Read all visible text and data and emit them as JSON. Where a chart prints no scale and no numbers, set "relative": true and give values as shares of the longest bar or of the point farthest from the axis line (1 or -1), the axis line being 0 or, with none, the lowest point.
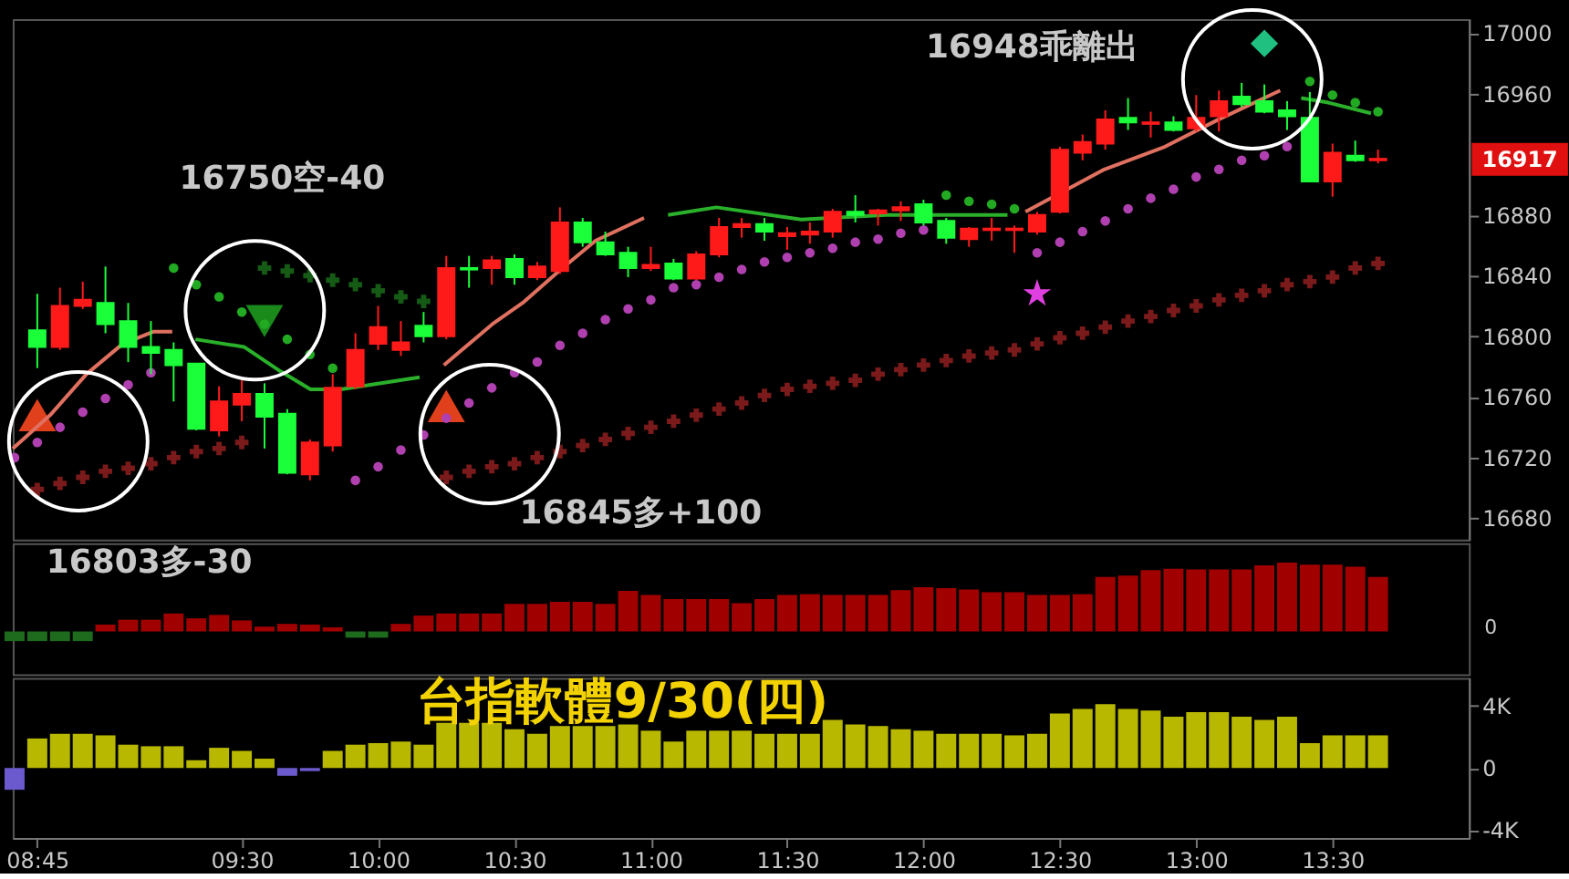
{
  "chart_data": [
    {
      "type": "candlestick",
      "x": [
        8.75,
        8.8333,
        8.9167,
        9,
        9.0833,
        9.1667,
        9.25,
        9.3333,
        9.4167,
        9.5,
        9.5833,
        9.6667,
        9.75,
        9.8333,
        9.9167,
        10,
        10.0833,
        10.1667,
        10.25,
        10.3333,
        10.4167,
        10.5,
        10.5833,
        10.6667,
        10.75,
        10.8333,
        10.9167,
        11,
        11.0833,
        11.1667,
        11.25,
        11.3333,
        11.4167,
        11.5,
        11.5833,
        11.6667,
        11.75,
        11.8333,
        11.9167,
        12,
        12.0833,
        12.1667,
        12.25,
        12.3333,
        12.4167,
        12.5,
        12.5833,
        12.6667,
        12.75,
        12.8333,
        12.9167,
        13,
        13.0833,
        13.1667,
        13.25,
        13.3333,
        13.4167,
        13.5,
        13.5833,
        13.6667
      ],
      "ohlc": [
        [
          16804,
          16828,
          16779,
          16793
        ],
        [
          16793,
          16832,
          16791,
          16820
        ],
        [
          16820,
          16836,
          16818,
          16824
        ],
        [
          16822,
          16846,
          16802,
          16808
        ],
        [
          16810,
          16822,
          16783,
          16793
        ],
        [
          16793,
          16810,
          16775,
          16789
        ],
        [
          16791,
          16796,
          16757,
          16781
        ],
        [
          16782,
          16782,
          16738,
          16739
        ],
        [
          16738,
          16767,
          16734,
          16757
        ],
        [
          16755,
          16771,
          16744,
          16762
        ],
        [
          16762,
          16769,
          16726,
          16747
        ],
        [
          16749,
          16752,
          16709,
          16710
        ],
        [
          16709,
          16732,
          16705,
          16730
        ],
        [
          16728,
          16775,
          16724,
          16766
        ],
        [
          16767,
          16802,
          16765,
          16791
        ],
        [
          16795,
          16820,
          16791,
          16806
        ],
        [
          16791,
          16810,
          16787,
          16796
        ],
        [
          16807,
          16816,
          16796,
          16800
        ],
        [
          16800,
          16853,
          16798,
          16845
        ],
        [
          16845,
          16853,
          16832,
          16844
        ],
        [
          16845,
          16853,
          16834,
          16850
        ],
        [
          16851,
          16854,
          16834,
          16839
        ],
        [
          16839,
          16849,
          16837,
          16846
        ],
        [
          16843,
          16885,
          16841,
          16875
        ],
        [
          16875,
          16878,
          16859,
          16862
        ],
        [
          16862,
          16869,
          16853,
          16854
        ],
        [
          16855,
          16859,
          16839,
          16845
        ],
        [
          16845,
          16859,
          16843,
          16847
        ],
        [
          16848,
          16851,
          16837,
          16838
        ],
        [
          16838,
          16856,
          16837,
          16854
        ],
        [
          16854,
          16878,
          16852,
          16872
        ],
        [
          16872,
          16878,
          16865,
          16874
        ],
        [
          16874,
          16878,
          16863,
          16869
        ],
        [
          16866,
          16872,
          16857,
          16868
        ],
        [
          16867,
          16875,
          16861,
          16869
        ],
        [
          16869,
          16884,
          16865,
          16882
        ],
        [
          16882,
          16893,
          16875,
          16880
        ],
        [
          16881,
          16884,
          16873,
          16883
        ],
        [
          16883,
          16889,
          16876,
          16885
        ],
        [
          16887,
          16890,
          16873,
          16875
        ],
        [
          16876,
          16878,
          16861,
          16865
        ],
        [
          16864,
          16872,
          16859,
          16871
        ],
        [
          16870,
          16878,
          16863,
          16871
        ],
        [
          16870,
          16873,
          16855,
          16871
        ],
        [
          16869,
          16882,
          16867,
          16880
        ],
        [
          16882,
          16925,
          16881,
          16923
        ],
        [
          16921,
          16933,
          16916,
          16928
        ],
        [
          16927,
          16949,
          16923,
          16943
        ],
        [
          16944,
          16957,
          16936,
          16941
        ],
        [
          16940,
          16948,
          16931,
          16941
        ],
        [
          16941,
          16945,
          16935,
          16936
        ],
        [
          16937,
          16959,
          16935,
          16944
        ],
        [
          16945,
          16962,
          16935,
          16955
        ],
        [
          16958,
          16967,
          16951,
          16953
        ],
        [
          16955,
          16966,
          16947,
          16948
        ],
        [
          16949,
          16955,
          16936,
          16945
        ],
        [
          16944,
          16961,
          16902,
          16902
        ],
        [
          16902,
          16927,
          16892,
          16921
        ],
        [
          16919,
          16929,
          16915,
          16916
        ],
        [
          16916,
          16923,
          16914,
          16917
        ]
      ],
      "colors": [
        "#1aff3a",
        "#ff1a1a",
        "#ff1a1a",
        "#1aff3a",
        "#1aff3a",
        "#1aff3a",
        "#1aff3a",
        "#1aff3a",
        "#ff1a1a",
        "#ff1a1a",
        "#1aff3a",
        "#1aff3a",
        "#ff1a1a",
        "#ff1a1a",
        "#ff1a1a",
        "#ff1a1a",
        "#ff1a1a",
        "#1aff3a",
        "#ff1a1a",
        "#1aff3a",
        "#ff1a1a",
        "#1aff3a",
        "#ff1a1a",
        "#ff1a1a",
        "#1aff3a",
        "#1aff3a",
        "#1aff3a",
        "#ff1a1a",
        "#1aff3a",
        "#ff1a1a",
        "#ff1a1a",
        "#ff1a1a",
        "#1aff3a",
        "#ff1a1a",
        "#ff1a1a",
        "#ff1a1a",
        "#1aff3a",
        "#ff1a1a",
        "#ff1a1a",
        "#1aff3a",
        "#1aff3a",
        "#ff1a1a",
        "#ff1a1a",
        "#ff1a1a",
        "#ff1a1a",
        "#ff1a1a",
        "#ff1a1a",
        "#ff1a1a",
        "#1aff3a",
        "#ff1a1a",
        "#1aff3a",
        "#ff1a1a",
        "#ff1a1a",
        "#1aff3a",
        "#1aff3a",
        "#1aff3a",
        "#1aff3a",
        "#ff1a1a",
        "#1aff3a",
        "#ff1a1a"
      ],
      "series": [
        {
          "type": "scatter",
          "marker": "triangle",
          "color": "#e0401c",
          "x": [
            8.75,
            10.25
          ],
          "values": [
            16748,
            16754
          ]
        },
        {
          "type": "scatter",
          "marker": "triangle-down",
          "color": "#1a8a1a",
          "x": [
            9.5833
          ],
          "values": [
            16810
          ]
        },
        {
          "type": "scatter",
          "marker": "star",
          "color": "#e040e0",
          "x": [
            12.4167
          ],
          "values": [
            16828
          ]
        },
        {
          "type": "scatter",
          "marker": "diamond",
          "color": "#20c080",
          "x": [
            13.25
          ],
          "values": [
            16993
          ]
        },
        {
          "type": "scatter",
          "marker": "cross",
          "color": "#7a1a1a",
          "x": [
            8.75,
            8.8333,
            8.9167,
            9,
            9.0833,
            9.1667,
            9.25,
            9.3333,
            9.4167,
            9.5,
            10.25,
            10.3333,
            10.4167,
            10.5,
            10.5833,
            10.6667,
            10.75,
            10.8333,
            10.9167,
            11,
            11.0833,
            11.1667,
            11.25,
            11.3333,
            11.4167,
            11.5,
            11.5833,
            11.6667,
            11.75,
            11.8333,
            11.9167,
            12,
            12.0833,
            12.1667,
            12.25,
            12.3333,
            12.4167,
            12.5,
            12.5833,
            12.6667,
            12.75,
            12.8333,
            12.9167,
            13,
            13.0833,
            13.1667,
            13.25,
            13.3333,
            13.4167,
            13.5,
            13.5833,
            13.6667
          ],
          "values": [
            16699,
            16703,
            16707,
            16711,
            16713,
            16716,
            16720,
            16724,
            16726,
            16730,
            16707,
            16711,
            16714,
            16716,
            16720,
            16724,
            16728,
            16732,
            16736,
            16740,
            16744,
            16748,
            16752,
            16756,
            16761,
            16765,
            16767,
            16769,
            16771,
            16775,
            16778,
            16781,
            16784,
            16787,
            16789,
            16791,
            16795,
            16799,
            16802,
            16806,
            16810,
            16813,
            16817,
            16820,
            16824,
            16827,
            16830,
            16834,
            16836,
            16839,
            16845,
            16848
          ]
        },
        {
          "type": "scatter",
          "marker": "cross",
          "color": "#155a15",
          "x": [
            9.5833,
            9.6667,
            9.75,
            9.8333,
            9.9167,
            10,
            10.0833,
            10.1667
          ],
          "values": [
            16845,
            16843,
            16840,
            16837,
            16834,
            16830,
            16826,
            16823
          ]
        },
        {
          "type": "line",
          "color": "#e07060",
          "x": [
            8.66,
            8.797,
            8.93,
            9.063,
            9.175,
            9.245,
            9.7,
            10.241,
            10.419,
            10.53,
            10.663,
            10.797,
            10.975,
            11.5,
            12.374,
            12.663,
            12.886,
            13.083,
            13.308
          ],
          "values": [
            16726,
            16748,
            16775,
            16795,
            16803,
            16803,
            null,
            16781,
            16808,
            16822,
            16843,
            16863,
            16878,
            null,
            16882,
            16910,
            16925,
            16943,
            16962
          ]
        },
        {
          "type": "line",
          "color": "#2ab02a",
          "x": [
            9.33,
            9.508,
            9.641,
            9.752,
            9.863,
            10.152,
            10.6,
            11.063,
            11.241,
            11.552,
            11.863,
            12.308,
            12.8,
            13.385,
            13.485,
            13.641
          ],
          "values": [
            16798,
            16793,
            16777,
            16765,
            16765,
            16773,
            null,
            16880,
            16885,
            16877,
            16880,
            16880,
            null,
            16957,
            16954,
            16947
          ]
        },
        {
          "type": "scatter",
          "marker": "circle",
          "color": "#b040b0",
          "x": [
            8.6667,
            8.75,
            8.8333,
            8.9167,
            9,
            9.0833,
            9.1667,
            9.9167,
            10,
            10.0833,
            10.1667,
            10.25,
            10.3333,
            10.4167,
            10.5,
            10.5833,
            10.6667,
            10.75,
            10.8333,
            10.9167,
            11,
            11.0833,
            11.1667,
            11.25,
            11.3333,
            11.4167,
            11.5,
            11.5833,
            11.6667,
            11.75,
            11.8333,
            11.9167,
            12,
            12.4167,
            12.5,
            12.5833,
            12.6667,
            12.75,
            12.8333,
            12.9167,
            13,
            13.0833,
            13.1667,
            13.25,
            13.3333
          ],
          "values": [
            16720,
            16730,
            16740,
            16750,
            16759,
            16768,
            16776,
            16705,
            16714,
            16725,
            16735,
            16746,
            16756,
            16766,
            16776,
            16783,
            16794,
            16802,
            16811,
            16818,
            16824,
            16832,
            16834,
            16839,
            16844,
            16849,
            16852,
            16855,
            16858,
            16862,
            16864,
            16868,
            16870,
            16855,
            16862,
            16869,
            16876,
            16884,
            16891,
            16897,
            16905,
            16910,
            16916,
            16919,
            16925
          ]
        },
        {
          "type": "scatter",
          "marker": "circle",
          "color": "#22aa22",
          "x": [
            9.25,
            9.3333,
            9.4167,
            9.5,
            9.5833,
            9.6667,
            9.75,
            9.8333,
            12.0833,
            12.1667,
            12.25,
            12.3333,
            13.4167,
            13.5,
            13.5833,
            13.6667
          ],
          "values": [
            16845,
            16834,
            16826,
            16816,
            16808,
            16798,
            16788,
            16779,
            16893,
            16889,
            16887,
            16884,
            16968,
            16959,
            16954,
            16948
          ]
        }
      ],
      "xlim": [
        8.66,
        14.0
      ],
      "ylim": [
        16666,
        17009
      ],
      "yticks": [
        16680,
        16720,
        16760,
        16800,
        16840,
        16880,
        16960,
        17000
      ],
      "tick_labels": "y",
      "annotations": [
        "16750空-40",
        "16845多+100",
        "16948乖離出",
        "16917"
      ]
    },
    {
      "type": "bar",
      "relative": true,
      "tick_labels": false,
      "xlim": [
        8.66,
        14.0
      ],
      "x": [
        8.6667,
        8.75,
        8.8333,
        8.9167,
        9,
        9.0833,
        9.1667,
        9.25,
        9.3333,
        9.4167,
        9.5,
        9.5833,
        9.6667,
        9.75,
        9.8333,
        9.9167,
        10,
        10.0833,
        10.1667,
        10.25,
        10.3333,
        10.4167,
        10.5,
        10.5833,
        10.6667,
        10.75,
        10.8333,
        10.9167,
        11,
        11.0833,
        11.1667,
        11.25,
        11.3333,
        11.4167,
        11.5,
        11.5833,
        11.6667,
        11.75,
        11.8333,
        11.9167,
        12,
        12.0833,
        12.1667,
        12.25,
        12.3333,
        12.4167,
        12.5,
        12.5833,
        12.6667,
        12.75,
        12.8333,
        12.9167,
        13,
        13.0833,
        13.1667,
        13.25,
        13.3333,
        13.4167,
        13.5,
        13.5833,
        13.6667
      ],
      "values": [
        -0.14,
        -0.14,
        -0.14,
        -0.14,
        0.1,
        0.17,
        0.17,
        0.26,
        0.19,
        0.24,
        0.16,
        0.07,
        0.11,
        0.1,
        0.06,
        -0.09,
        -0.09,
        0.11,
        0.23,
        0.26,
        0.26,
        0.26,
        0.4,
        0.4,
        0.43,
        0.43,
        0.4,
        0.59,
        0.53,
        0.47,
        0.47,
        0.47,
        0.41,
        0.47,
        0.53,
        0.54,
        0.53,
        0.53,
        0.53,
        0.6,
        0.64,
        0.63,
        0.61,
        0.57,
        0.57,
        0.53,
        0.53,
        0.54,
        0.79,
        0.81,
        0.89,
        0.91,
        0.9,
        0.9,
        0.9,
        0.96,
        1,
        0.97,
        0.97,
        0.94,
        0.79
      ],
      "colors": [
        "#1e6b1e",
        "#1e6b1e",
        "#1e6b1e",
        "#1e6b1e",
        "#a00000",
        "#a00000",
        "#a00000",
        "#a00000",
        "#a00000",
        "#a00000",
        "#a00000",
        "#a00000",
        "#a00000",
        "#a00000",
        "#a00000",
        "#1e6b1e",
        "#1e6b1e",
        "#a00000",
        "#a00000",
        "#a00000",
        "#a00000",
        "#a00000",
        "#a00000",
        "#a00000",
        "#a00000",
        "#a00000",
        "#a00000",
        "#a00000",
        "#a00000",
        "#a00000",
        "#a00000",
        "#a00000",
        "#a00000",
        "#a00000",
        "#a00000",
        "#a00000",
        "#a00000",
        "#a00000",
        "#a00000",
        "#a00000",
        "#a00000",
        "#a00000",
        "#a00000",
        "#a00000",
        "#a00000",
        "#a00000",
        "#a00000",
        "#a00000",
        "#a00000",
        "#a00000",
        "#a00000",
        "#a00000",
        "#a00000",
        "#a00000",
        "#a00000",
        "#a00000",
        "#a00000",
        "#a00000",
        "#a00000",
        "#a00000",
        "#a00000"
      ],
      "annotations": [
        "16803多-30",
        "0"
      ]
    },
    {
      "type": "bar",
      "title": "台指軟體9/30(四)",
      "xlim": [
        8.66,
        14.0
      ],
      "ylim": [
        -4500,
        5800
      ],
      "yticks": [
        {
          "value": -4000,
          "label": "-4K"
        },
        0,
        {
          "value": 4000,
          "label": "4K"
        }
      ],
      "xticks": [
        {
          "value": 8.75,
          "label": "08:45"
        },
        {
          "value": 9.5,
          "label": "09:30"
        },
        {
          "value": 10,
          "label": "10:00"
        },
        {
          "value": 10.5,
          "label": "10:30"
        },
        {
          "value": 11,
          "label": "11:00"
        },
        {
          "value": 11.5,
          "label": "11:30"
        },
        {
          "value": 12,
          "label": "12:00"
        },
        {
          "value": 12.5,
          "label": "12:30"
        },
        {
          "value": 13,
          "label": "13:00"
        },
        {
          "value": 13.5,
          "label": "13:30"
        }
      ],
      "x": [
        8.6667,
        8.75,
        8.8333,
        8.9167,
        9,
        9.0833,
        9.1667,
        9.25,
        9.3333,
        9.4167,
        9.5,
        9.5833,
        9.6667,
        9.75,
        9.8333,
        9.9167,
        10,
        10.0833,
        10.1667,
        10.25,
        10.3333,
        10.4167,
        10.5,
        10.5833,
        10.6667,
        10.75,
        10.8333,
        10.9167,
        11,
        11.0833,
        11.1667,
        11.25,
        11.3333,
        11.4167,
        11.5,
        11.5833,
        11.6667,
        11.75,
        11.8333,
        11.9167,
        12,
        12.0833,
        12.1667,
        12.25,
        12.3333,
        12.4167,
        12.5,
        12.5833,
        12.6667,
        12.75,
        12.8333,
        12.9167,
        13,
        13.0833,
        13.1667,
        13.25,
        13.3333,
        13.4167,
        13.5,
        13.5833,
        13.6667
      ],
      "values": [
        -1400,
        1900,
        2200,
        2200,
        2100,
        1500,
        1400,
        1400,
        500,
        1300,
        1100,
        600,
        -500,
        -200,
        1100,
        1500,
        1600,
        1700,
        1500,
        2900,
        2900,
        2900,
        2500,
        2200,
        2700,
        2700,
        2700,
        2800,
        2400,
        1700,
        2400,
        2400,
        2400,
        2200,
        2200,
        2200,
        3100,
        2800,
        2700,
        2500,
        2400,
        2200,
        2200,
        2200,
        2100,
        2200,
        3500,
        3800,
        4100,
        3800,
        3700,
        3300,
        3600,
        3600,
        3300,
        3100,
        3300,
        1600,
        2100,
        2100,
        2100
      ],
      "colors": [
        "#6a5acd",
        "#b8b800",
        "#b8b800",
        "#b8b800",
        "#b8b800",
        "#b8b800",
        "#b8b800",
        "#b8b800",
        "#b8b800",
        "#b8b800",
        "#b8b800",
        "#b8b800",
        "#6a5acd",
        "#6a5acd",
        "#b8b800",
        "#b8b800",
        "#b8b800",
        "#b8b800",
        "#b8b800",
        "#b8b800",
        "#b8b800",
        "#b8b800",
        "#b8b800",
        "#b8b800",
        "#b8b800",
        "#b8b800",
        "#b8b800",
        "#b8b800",
        "#b8b800",
        "#b8b800",
        "#b8b800",
        "#b8b800",
        "#b8b800",
        "#b8b800",
        "#b8b800",
        "#b8b800",
        "#b8b800",
        "#b8b800",
        "#b8b800",
        "#b8b800",
        "#b8b800",
        "#b8b800",
        "#b8b800",
        "#b8b800",
        "#b8b800",
        "#b8b800",
        "#b8b800",
        "#b8b800",
        "#b8b800",
        "#b8b800",
        "#b8b800",
        "#b8b800",
        "#b8b800",
        "#b8b800",
        "#b8b800",
        "#b8b800",
        "#b8b800",
        "#b8b800",
        "#b8b800",
        "#b8b800",
        "#b8b800"
      ]
    }
  ]
}
